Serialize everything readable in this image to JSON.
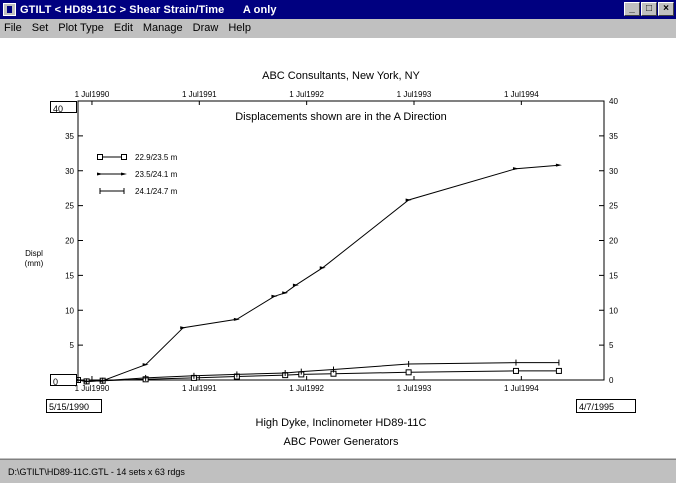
{
  "window": {
    "title": "GTILT < HD89-11C > Shear Strain/Time      A only",
    "controls": {
      "minimize": "_",
      "maximize": "□",
      "close": "×"
    }
  },
  "menu": [
    "File",
    "Set",
    "Plot Type",
    "Edit",
    "Manage",
    "Draw",
    "Help"
  ],
  "chart_data": {
    "type": "line",
    "title": "ABC Consultants, New York, NY",
    "subtitle": "Displacements shown are in the  A Direction",
    "footer_title": "High Dyke, Inclinometer HD89-11C",
    "footer_subtitle": "ABC Power Generators",
    "ylabel": "Displ\n(mm)",
    "ylim": [
      0,
      40
    ],
    "yticks": [
      0,
      5,
      10,
      15,
      20,
      25,
      30,
      35,
      40
    ],
    "x_start": "5/15/1990",
    "x_end": "4/7/1995",
    "x_ticks": [
      "1 Jul1990",
      "1 Jul1991",
      "1 Jul1992",
      "1 Jul1993",
      "1 Jul1994"
    ],
    "x_tick_years": [
      1990.5,
      1991.5,
      1992.5,
      1993.5,
      1994.5
    ],
    "xlim_years": [
      1990.37,
      1995.27
    ],
    "legend": "top-left",
    "series": [
      {
        "name": "22.9/23.5 m",
        "marker": "square",
        "x": [
          1990.37,
          1990.45,
          1990.6,
          1991.0,
          1991.45,
          1991.85,
          1992.3,
          1992.45,
          1992.75,
          1993.45,
          1994.45,
          1994.85
        ],
        "y": [
          0.0,
          -0.2,
          -0.1,
          0.1,
          0.3,
          0.5,
          0.7,
          0.8,
          0.9,
          1.1,
          1.3,
          1.3
        ]
      },
      {
        "name": "23.5/24.1 m",
        "marker": "arrow",
        "x": [
          1990.37,
          1990.45,
          1990.6,
          1991.0,
          1991.35,
          1991.85,
          1992.2,
          1992.3,
          1992.4,
          1992.65,
          1993.45,
          1994.45,
          1994.85
        ],
        "y": [
          0.0,
          -0.2,
          -0.1,
          2.2,
          7.5,
          8.7,
          12.0,
          12.5,
          13.6,
          16.1,
          25.8,
          30.3,
          30.8
        ]
      },
      {
        "name": "24.1/24.7 m",
        "marker": "tick",
        "x": [
          1990.37,
          1990.45,
          1990.6,
          1991.0,
          1991.45,
          1991.85,
          1992.3,
          1992.45,
          1992.75,
          1993.45,
          1994.45,
          1994.85
        ],
        "y": [
          0.0,
          -0.2,
          -0.1,
          0.3,
          0.6,
          0.8,
          1.0,
          1.2,
          1.5,
          2.3,
          2.5,
          2.5
        ]
      }
    ]
  },
  "status": "D:\\GTILT\\HD89-11C.GTL  -  14 sets x 63 rdgs"
}
